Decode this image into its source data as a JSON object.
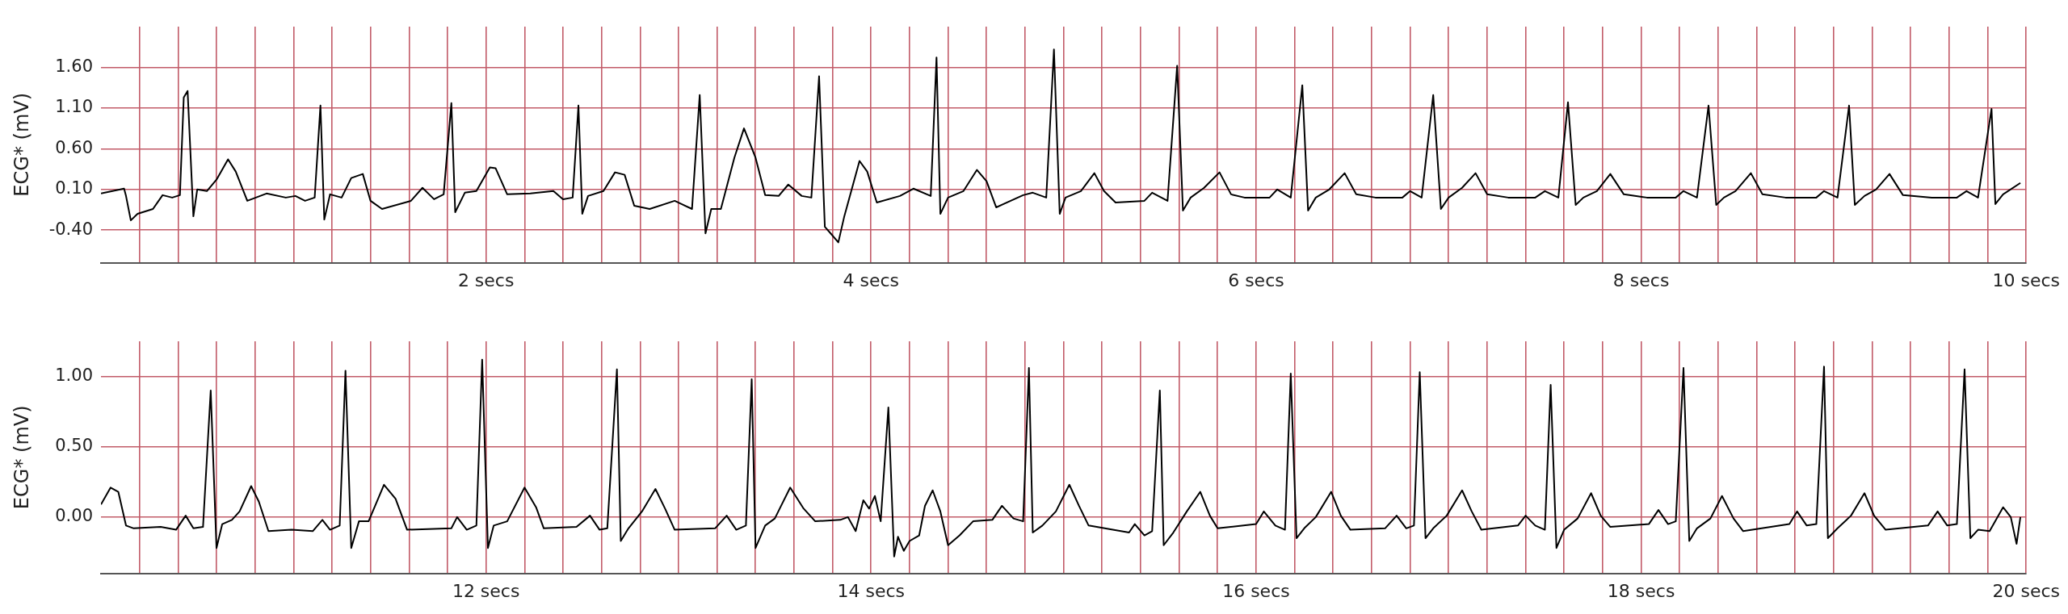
{
  "chart_data": [
    {
      "type": "line",
      "ylabel": "ECG* (mV)",
      "color": "#000000",
      "grid": true,
      "legend": false,
      "marker": "none",
      "line_style": "solid",
      "xlim": [
        0,
        10
      ],
      "ylim": [
        -0.8,
        2.1
      ],
      "yticks": [
        {
          "value": -0.4,
          "label": "-0.40"
        },
        {
          "value": 0.1,
          "label": "0.10"
        },
        {
          "value": 0.6,
          "label": "0.60"
        },
        {
          "value": 1.1,
          "label": "1.10"
        },
        {
          "value": 1.6,
          "label": "1.60"
        }
      ],
      "xticks": [
        {
          "value": 0.2,
          "label": null
        },
        {
          "value": 0.4,
          "label": null
        },
        {
          "value": 0.6,
          "label": null
        },
        {
          "value": 0.8,
          "label": null
        },
        {
          "value": 1.0,
          "label": null
        },
        {
          "value": 1.2,
          "label": null
        },
        {
          "value": 1.4,
          "label": null
        },
        {
          "value": 1.6,
          "label": null
        },
        {
          "value": 1.8,
          "label": null
        },
        {
          "value": 2,
          "label": "2 secs"
        },
        {
          "value": 2.2,
          "label": null
        },
        {
          "value": 2.4,
          "label": null
        },
        {
          "value": 2.6,
          "label": null
        },
        {
          "value": 2.8,
          "label": null
        },
        {
          "value": 3.0,
          "label": null
        },
        {
          "value": 3.2,
          "label": null
        },
        {
          "value": 3.4,
          "label": null
        },
        {
          "value": 3.6,
          "label": null
        },
        {
          "value": 3.8,
          "label": null
        },
        {
          "value": 4,
          "label": "4 secs"
        },
        {
          "value": 4.2,
          "label": null
        },
        {
          "value": 4.4,
          "label": null
        },
        {
          "value": 4.6,
          "label": null
        },
        {
          "value": 4.8,
          "label": null
        },
        {
          "value": 5.0,
          "label": null
        },
        {
          "value": 5.2,
          "label": null
        },
        {
          "value": 5.4,
          "label": null
        },
        {
          "value": 5.6,
          "label": null
        },
        {
          "value": 5.8,
          "label": null
        },
        {
          "value": 6,
          "label": "6 secs"
        },
        {
          "value": 6.2,
          "label": null
        },
        {
          "value": 6.4,
          "label": null
        },
        {
          "value": 6.6,
          "label": null
        },
        {
          "value": 6.8,
          "label": null
        },
        {
          "value": 7.0,
          "label": null
        },
        {
          "value": 7.2,
          "label": null
        },
        {
          "value": 7.4,
          "label": null
        },
        {
          "value": 7.6,
          "label": null
        },
        {
          "value": 7.8,
          "label": null
        },
        {
          "value": 8,
          "label": "8 secs"
        },
        {
          "value": 8.2,
          "label": null
        },
        {
          "value": 8.4,
          "label": null
        },
        {
          "value": 8.6,
          "label": null
        },
        {
          "value": 8.8,
          "label": null
        },
        {
          "value": 9.0,
          "label": null
        },
        {
          "value": 9.2,
          "label": null
        },
        {
          "value": 9.4,
          "label": null
        },
        {
          "value": 9.6,
          "label": null
        },
        {
          "value": 9.8,
          "label": null
        },
        {
          "value": 10,
          "label": "10 secs"
        }
      ],
      "x": [
        0,
        0.12,
        0.13,
        0.155,
        0.19,
        0.27,
        0.32,
        0.37,
        0.41,
        0.43,
        0.45,
        0.48,
        0.5,
        0.55,
        0.6,
        0.66,
        0.7,
        0.76,
        0.86,
        0.96,
        1.01,
        1.06,
        1.11,
        1.14,
        1.16,
        1.19,
        1.25,
        1.3,
        1.36,
        1.4,
        1.46,
        1.61,
        1.67,
        1.73,
        1.78,
        1.82,
        1.84,
        1.89,
        1.95,
        2.02,
        2.05,
        2.11,
        2.23,
        2.35,
        2.4,
        2.45,
        2.48,
        2.5,
        2.53,
        2.61,
        2.67,
        2.72,
        2.77,
        2.85,
        2.98,
        3.07,
        3.11,
        3.14,
        3.17,
        3.22,
        3.29,
        3.34,
        3.4,
        3.45,
        3.52,
        3.57,
        3.64,
        3.69,
        3.73,
        3.76,
        3.79,
        3.83,
        3.86,
        3.94,
        3.98,
        4.03,
        4.15,
        4.22,
        4.31,
        4.34,
        4.36,
        4.4,
        4.48,
        4.55,
        4.6,
        4.65,
        4.79,
        4.84,
        4.91,
        4.95,
        4.98,
        5.01,
        5.09,
        5.16,
        5.21,
        5.27,
        5.42,
        5.46,
        5.54,
        5.59,
        5.62,
        5.66,
        5.73,
        5.81,
        5.87,
        5.94,
        6.07,
        6.11,
        6.18,
        6.24,
        6.27,
        6.31,
        6.38,
        6.46,
        6.52,
        6.62,
        6.76,
        6.8,
        6.86,
        6.92,
        6.96,
        7.0,
        7.07,
        7.14,
        7.2,
        7.31,
        7.45,
        7.5,
        7.57,
        7.62,
        7.66,
        7.7,
        7.77,
        7.84,
        7.91,
        8.03,
        8.18,
        8.22,
        8.29,
        8.35,
        8.39,
        8.43,
        8.49,
        8.57,
        8.63,
        8.75,
        8.91,
        8.95,
        9.02,
        9.08,
        9.11,
        9.16,
        9.22,
        9.29,
        9.36,
        9.51,
        9.64,
        9.69,
        9.75,
        9.82,
        9.84,
        9.88,
        9.97
      ],
      "values": [
        0.05,
        0.11,
        0.02,
        -0.28,
        -0.2,
        -0.14,
        0.03,
        0.0,
        0.03,
        1.23,
        1.31,
        -0.23,
        0.1,
        0.08,
        0.22,
        0.47,
        0.32,
        -0.04,
        0.05,
        0.0,
        0.02,
        -0.04,
        0.0,
        1.13,
        -0.27,
        0.04,
        0.0,
        0.24,
        0.29,
        -0.04,
        -0.14,
        -0.04,
        0.12,
        -0.02,
        0.04,
        1.16,
        -0.18,
        0.06,
        0.08,
        0.37,
        0.36,
        0.04,
        0.05,
        0.08,
        -0.02,
        0.0,
        1.13,
        -0.2,
        0.02,
        0.08,
        0.31,
        0.28,
        -0.1,
        -0.14,
        -0.04,
        -0.14,
        1.26,
        -0.44,
        -0.14,
        -0.14,
        0.49,
        0.85,
        0.49,
        0.03,
        0.02,
        0.16,
        0.02,
        0.0,
        1.49,
        -0.36,
        -0.44,
        -0.55,
        -0.24,
        0.45,
        0.32,
        -0.06,
        0.02,
        0.11,
        0.02,
        1.72,
        -0.2,
        0.0,
        0.08,
        0.34,
        0.2,
        -0.12,
        0.03,
        0.06,
        0.0,
        1.82,
        -0.2,
        0.0,
        0.08,
        0.3,
        0.08,
        -0.06,
        -0.04,
        0.06,
        -0.04,
        1.62,
        -0.16,
        0.0,
        0.12,
        0.31,
        0.04,
        0.0,
        0.0,
        0.1,
        0.0,
        1.38,
        -0.16,
        0.0,
        0.1,
        0.3,
        0.04,
        0.0,
        0.0,
        0.08,
        0.0,
        1.26,
        -0.14,
        0.0,
        0.12,
        0.3,
        0.04,
        0.0,
        0.0,
        0.08,
        0.0,
        1.17,
        -0.09,
        0.0,
        0.08,
        0.29,
        0.04,
        0.0,
        0.0,
        0.08,
        0.0,
        1.13,
        -0.09,
        0.0,
        0.08,
        0.3,
        0.04,
        0.0,
        0.0,
        0.08,
        0.0,
        1.13,
        -0.09,
        0.02,
        0.1,
        0.29,
        0.03,
        0.0,
        0.0,
        0.08,
        0.0,
        1.09,
        -0.08,
        0.04,
        0.18
      ]
    },
    {
      "type": "line",
      "ylabel": "ECG* (mV)",
      "color": "#000000",
      "grid": true,
      "legend": false,
      "marker": "none",
      "line_style": "solid",
      "xlim": [
        10,
        20
      ],
      "ylim": [
        -0.4,
        1.25
      ],
      "yticks": [
        {
          "value": 0,
          "label": "0.00"
        },
        {
          "value": 0.5,
          "label": "0.50"
        },
        {
          "value": 1,
          "label": "1.00"
        }
      ],
      "xticks": [
        {
          "value": 10.2,
          "label": null
        },
        {
          "value": 10.4,
          "label": null
        },
        {
          "value": 10.6,
          "label": null
        },
        {
          "value": 10.8,
          "label": null
        },
        {
          "value": 11.0,
          "label": null
        },
        {
          "value": 11.2,
          "label": null
        },
        {
          "value": 11.4,
          "label": null
        },
        {
          "value": 11.6,
          "label": null
        },
        {
          "value": 11.8,
          "label": null
        },
        {
          "value": 12,
          "label": "12 secs"
        },
        {
          "value": 12.2,
          "label": null
        },
        {
          "value": 12.4,
          "label": null
        },
        {
          "value": 12.6,
          "label": null
        },
        {
          "value": 12.8,
          "label": null
        },
        {
          "value": 13.0,
          "label": null
        },
        {
          "value": 13.2,
          "label": null
        },
        {
          "value": 13.4,
          "label": null
        },
        {
          "value": 13.6,
          "label": null
        },
        {
          "value": 13.8,
          "label": null
        },
        {
          "value": 14,
          "label": "14 secs"
        },
        {
          "value": 14.2,
          "label": null
        },
        {
          "value": 14.4,
          "label": null
        },
        {
          "value": 14.6,
          "label": null
        },
        {
          "value": 14.8,
          "label": null
        },
        {
          "value": 15.0,
          "label": null
        },
        {
          "value": 15.2,
          "label": null
        },
        {
          "value": 15.4,
          "label": null
        },
        {
          "value": 15.6,
          "label": null
        },
        {
          "value": 15.8,
          "label": null
        },
        {
          "value": 16,
          "label": "16 secs"
        },
        {
          "value": 16.2,
          "label": null
        },
        {
          "value": 16.4,
          "label": null
        },
        {
          "value": 16.6,
          "label": null
        },
        {
          "value": 16.8,
          "label": null
        },
        {
          "value": 17.0,
          "label": null
        },
        {
          "value": 17.2,
          "label": null
        },
        {
          "value": 17.4,
          "label": null
        },
        {
          "value": 17.6,
          "label": null
        },
        {
          "value": 17.8,
          "label": null
        },
        {
          "value": 18,
          "label": "18 secs"
        },
        {
          "value": 18.2,
          "label": null
        },
        {
          "value": 18.4,
          "label": null
        },
        {
          "value": 18.6,
          "label": null
        },
        {
          "value": 18.8,
          "label": null
        },
        {
          "value": 19.0,
          "label": null
        },
        {
          "value": 19.2,
          "label": null
        },
        {
          "value": 19.4,
          "label": null
        },
        {
          "value": 19.6,
          "label": null
        },
        {
          "value": 19.8,
          "label": null
        },
        {
          "value": 20,
          "label": "20 secs"
        }
      ],
      "x": [
        10.0,
        10.05,
        10.09,
        10.13,
        10.17,
        10.31,
        10.39,
        10.44,
        10.48,
        10.53,
        10.57,
        10.6,
        10.63,
        10.68,
        10.72,
        10.78,
        10.82,
        10.87,
        10.99,
        11.1,
        11.15,
        11.19,
        11.24,
        11.27,
        11.3,
        11.34,
        11.39,
        11.47,
        11.53,
        11.59,
        11.82,
        11.85,
        11.9,
        11.95,
        11.98,
        12.01,
        12.04,
        12.11,
        12.2,
        12.26,
        12.3,
        12.47,
        12.54,
        12.59,
        12.63,
        12.68,
        12.7,
        12.74,
        12.81,
        12.88,
        12.93,
        12.98,
        13.19,
        13.25,
        13.3,
        13.35,
        13.38,
        13.4,
        13.45,
        13.5,
        13.58,
        13.65,
        13.71,
        13.84,
        13.88,
        13.92,
        13.96,
        13.99,
        14.02,
        14.05,
        14.09,
        14.12,
        14.14,
        14.17,
        14.2,
        14.25,
        14.28,
        14.32,
        14.36,
        14.4,
        14.46,
        14.53,
        14.63,
        14.68,
        14.74,
        14.79,
        14.82,
        14.84,
        14.89,
        14.96,
        15.03,
        15.08,
        15.13,
        15.34,
        15.37,
        15.42,
        15.46,
        15.5,
        15.52,
        15.57,
        15.64,
        15.71,
        15.76,
        15.8,
        16.0,
        16.04,
        16.1,
        16.15,
        16.18,
        16.21,
        16.25,
        16.31,
        16.39,
        16.44,
        16.49,
        16.67,
        16.73,
        16.78,
        16.82,
        16.85,
        16.88,
        16.92,
        16.99,
        17.07,
        17.12,
        17.17,
        17.36,
        17.4,
        17.45,
        17.5,
        17.53,
        17.56,
        17.6,
        17.67,
        17.74,
        17.79,
        17.84,
        18.04,
        18.09,
        18.14,
        18.18,
        18.22,
        18.25,
        18.29,
        18.36,
        18.42,
        18.48,
        18.53,
        18.77,
        18.81,
        18.86,
        18.91,
        18.95,
        18.97,
        19.02,
        19.09,
        19.16,
        19.21,
        19.27,
        19.49,
        19.54,
        19.59,
        19.64,
        19.68,
        19.71,
        19.75,
        19.81,
        19.88,
        19.92,
        19.95,
        19.97
      ],
      "values": [
        0.09,
        0.21,
        0.18,
        -0.06,
        -0.08,
        -0.07,
        -0.09,
        0.01,
        -0.08,
        -0.07,
        0.9,
        -0.22,
        -0.05,
        -0.02,
        0.04,
        0.22,
        0.11,
        -0.1,
        -0.09,
        -0.1,
        -0.02,
        -0.09,
        -0.06,
        1.04,
        -0.22,
        -0.03,
        -0.03,
        0.23,
        0.13,
        -0.09,
        -0.08,
        0.0,
        -0.09,
        -0.06,
        1.12,
        -0.22,
        -0.06,
        -0.03,
        0.21,
        0.07,
        -0.08,
        -0.07,
        0.01,
        -0.09,
        -0.08,
        1.05,
        -0.17,
        -0.08,
        0.04,
        0.2,
        0.06,
        -0.09,
        -0.08,
        0.01,
        -0.09,
        -0.06,
        0.98,
        -0.22,
        -0.06,
        -0.01,
        0.21,
        0.06,
        -0.03,
        -0.02,
        0.0,
        -0.1,
        0.12,
        0.06,
        0.15,
        -0.03,
        0.78,
        -0.28,
        -0.14,
        -0.24,
        -0.17,
        -0.13,
        0.08,
        0.19,
        0.04,
        -0.2,
        -0.13,
        -0.03,
        -0.02,
        0.08,
        -0.01,
        -0.03,
        1.06,
        -0.11,
        -0.06,
        0.04,
        0.23,
        0.08,
        -0.06,
        -0.11,
        -0.05,
        -0.13,
        -0.1,
        0.9,
        -0.2,
        -0.11,
        0.04,
        0.18,
        0.01,
        -0.08,
        -0.05,
        0.04,
        -0.06,
        -0.09,
        1.02,
        -0.15,
        -0.08,
        0.0,
        0.18,
        0.01,
        -0.09,
        -0.08,
        0.01,
        -0.08,
        -0.06,
        1.03,
        -0.15,
        -0.08,
        0.01,
        0.19,
        0.04,
        -0.09,
        -0.06,
        0.01,
        -0.06,
        -0.09,
        0.94,
        -0.22,
        -0.09,
        -0.01,
        0.17,
        0.01,
        -0.07,
        -0.05,
        0.05,
        -0.05,
        -0.03,
        1.06,
        -0.17,
        -0.08,
        -0.01,
        0.15,
        -0.01,
        -0.1,
        -0.05,
        0.04,
        -0.06,
        -0.05,
        1.07,
        -0.15,
        -0.08,
        0.01,
        0.17,
        0.01,
        -0.09,
        -0.06,
        0.04,
        -0.06,
        -0.05,
        1.05,
        -0.15,
        -0.09,
        -0.1,
        0.07,
        0.0,
        -0.19,
        0.0
      ]
    }
  ]
}
